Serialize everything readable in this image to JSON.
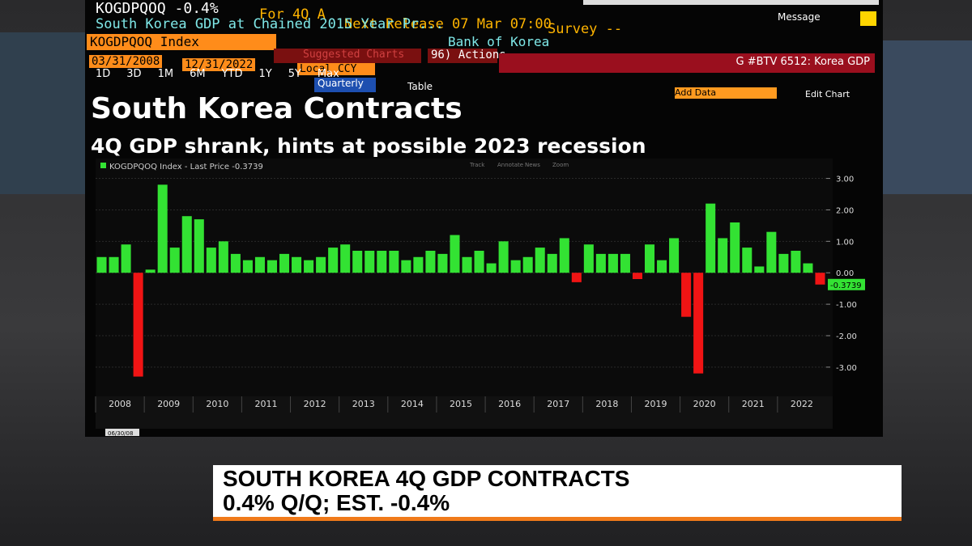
{
  "terminal": {
    "ticker_line": {
      "ticker": "KOGDPQOQ -0.4%",
      "period": "For 4Q A",
      "next_release": "Next Release 07 Mar 07:00",
      "survey": "Survey --"
    },
    "description": "South Korea GDP at Chained 2015 Year Pr...",
    "source": "Bank of Korea",
    "message": "Message",
    "security": "KOGDPQOQ Index",
    "suggested": "Suggested Charts",
    "actions": "96) Actions",
    "start_date": "03/31/2008",
    "end_date": "12/31/2022",
    "currency": "Local CCY",
    "function": "G #BTV 6512: Korea GDP",
    "periods": [
      "1D",
      "3D",
      "1M",
      "6M",
      "YTD",
      "1Y",
      "5Y",
      "Max"
    ],
    "frequency": "Quarterly",
    "table": "Table",
    "add_data": "Add Data",
    "edit_chart": "Edit Chart",
    "tools": [
      "Track",
      "Annotate",
      "News",
      "Zoom"
    ]
  },
  "chart_data": {
    "type": "bar",
    "title": "South Korea Contracts",
    "subtitle": "4Q GDP shrank, hints at possible 2023 recession",
    "legend": "KOGDPQOQ Index - Last Price -0.3739",
    "positive_color": "#33e233",
    "negative_color": "#f01414",
    "values": [
      0.5,
      0.5,
      0.9,
      -3.3,
      0.1,
      2.8,
      0.8,
      1.8,
      1.7,
      0.8,
      1.0,
      0.6,
      0.4,
      0.5,
      0.4,
      0.6,
      0.5,
      0.4,
      0.5,
      0.8,
      0.9,
      0.7,
      0.7,
      0.7,
      0.7,
      0.4,
      0.5,
      0.7,
      0.6,
      1.2,
      0.5,
      0.7,
      0.3,
      1.0,
      0.4,
      0.5,
      0.8,
      0.6,
      1.1,
      -0.3,
      0.9,
      0.6,
      0.6,
      0.6,
      -0.2,
      0.9,
      0.4,
      1.1,
      -1.4,
      -3.2,
      2.2,
      1.1,
      1.6,
      0.8,
      0.2,
      1.3,
      0.6,
      0.7,
      0.3,
      -0.3739
    ],
    "last_value_label": "-0.3739",
    "first_date_label": "06/30/08",
    "year_labels": [
      "2008",
      "2009",
      "2010",
      "2011",
      "2012",
      "2013",
      "2014",
      "2015",
      "2016",
      "2017",
      "2018",
      "2019",
      "2020",
      "2021",
      "2022"
    ],
    "ylim": [
      -3.8,
      3.4
    ],
    "yticks": [
      {
        "value": 3,
        "label": "3.00"
      },
      {
        "value": 2,
        "label": "2.00"
      },
      {
        "value": 1,
        "label": "1.00"
      },
      {
        "value": 0,
        "label": "0.00"
      },
      {
        "value": -1,
        "label": "-1.00"
      },
      {
        "value": -2,
        "label": "-2.00"
      },
      {
        "value": -3,
        "label": "-3.00"
      }
    ],
    "grid": true
  },
  "banner": {
    "line1": "SOUTH KOREA 4Q GDP CONTRACTS",
    "line2": "0.4% Q/Q; EST. -0.4%"
  }
}
